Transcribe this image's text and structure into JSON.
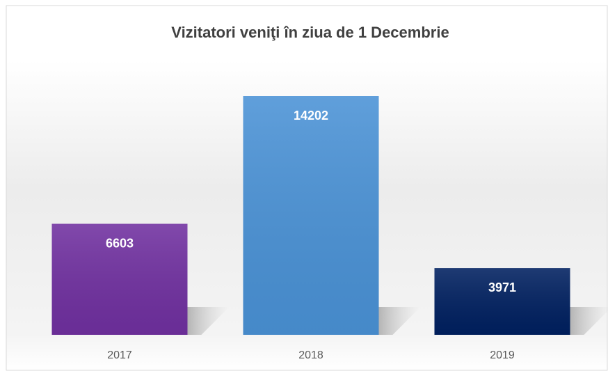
{
  "chart_data": {
    "type": "bar",
    "title": "Vizitatori veniţi în ziua de 1 Decembrie",
    "categories": [
      "2017",
      "2018",
      "2019"
    ],
    "values": [
      6603,
      14202,
      3971
    ],
    "colors": [
      "#7030a0",
      "#4a92d6",
      "#002060"
    ],
    "grid": false
  }
}
